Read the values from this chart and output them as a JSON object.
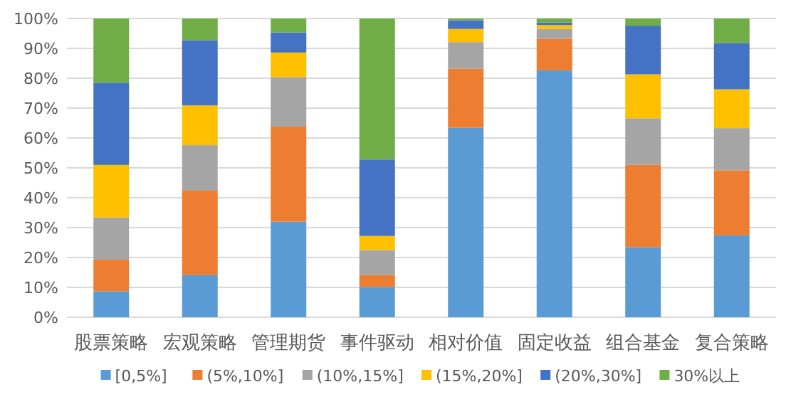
{
  "chart_data": {
    "type": "bar",
    "stacked": true,
    "categories": [
      "股票策略",
      "宏观策略",
      "管理期货",
      "事件驱动",
      "相对价值",
      "固定收益",
      "组合基金",
      "复合策略"
    ],
    "series": [
      {
        "name": "[0,5%]",
        "color": "#5b9bd5",
        "values": [
          8.7,
          14.1,
          32.0,
          10.1,
          63.4,
          82.6,
          23.4,
          27.4
        ]
      },
      {
        "name": "(5%,10%]",
        "color": "#ed7d31",
        "values": [
          10.6,
          28.3,
          31.8,
          4.0,
          19.8,
          10.6,
          27.6,
          21.8
        ]
      },
      {
        "name": "(10%,15%]",
        "color": "#a5a5a5",
        "values": [
          14.1,
          15.2,
          16.6,
          8.4,
          8.9,
          3.3,
          15.6,
          14.1
        ]
      },
      {
        "name": "(15%,20%]",
        "color": "#ffc000",
        "values": [
          17.6,
          13.3,
          8.2,
          4.7,
          4.4,
          1.3,
          14.7,
          13.0
        ]
      },
      {
        "name": "(20%,30%]",
        "color": "#4472c4",
        "values": [
          27.5,
          21.8,
          6.7,
          25.6,
          2.9,
          0.9,
          16.3,
          15.5
        ]
      },
      {
        "name": "30%以上",
        "color": "#70ad47",
        "values": [
          21.5,
          7.3,
          4.7,
          47.2,
          0.6,
          1.3,
          2.4,
          8.2
        ]
      }
    ],
    "ylim": [
      0,
      100
    ],
    "yticks": [
      {
        "value": 0,
        "label": "0%"
      },
      {
        "value": 10,
        "label": "10%"
      },
      {
        "value": 20,
        "label": "20%"
      },
      {
        "value": 30,
        "label": "30%"
      },
      {
        "value": 40,
        "label": "40%"
      },
      {
        "value": 50,
        "label": "50%"
      },
      {
        "value": 60,
        "label": "60%"
      },
      {
        "value": 70,
        "label": "70%"
      },
      {
        "value": 80,
        "label": "80%"
      },
      {
        "value": 90,
        "label": "90%"
      },
      {
        "value": 100,
        "label": "100%"
      }
    ],
    "grid": "y",
    "legend": "bottom"
  }
}
